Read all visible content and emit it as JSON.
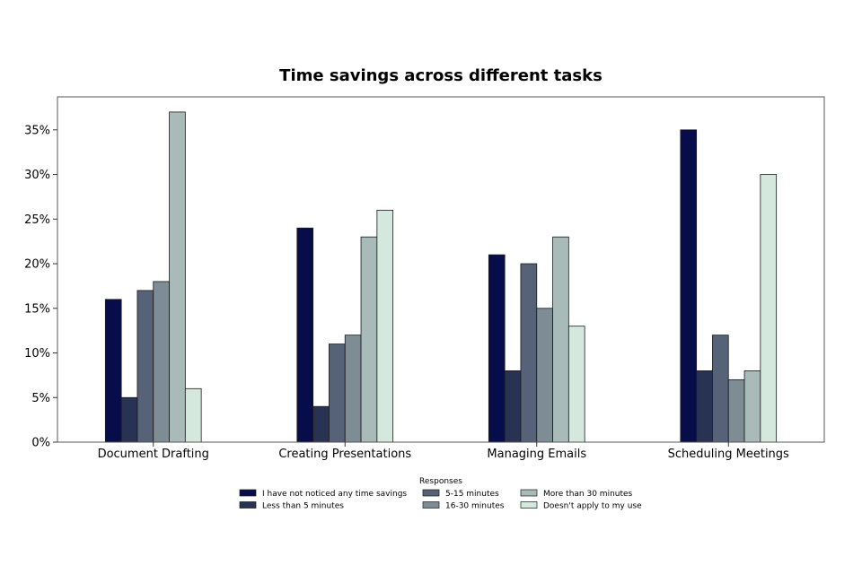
{
  "chart_data": {
    "type": "bar",
    "title": "Time savings across different tasks",
    "xlabel": "",
    "ylabel": "",
    "ylim": [
      0,
      0.387
    ],
    "yticks": [
      0,
      0.05,
      0.1,
      0.15,
      0.2,
      0.25,
      0.3,
      0.35
    ],
    "ytick_labels": [
      "0%",
      "5%",
      "10%",
      "15%",
      "20%",
      "25%",
      "30%",
      "35%"
    ],
    "grid": false,
    "categories": [
      "Document Drafting",
      "Creating Presentations",
      "Managing Emails",
      "Scheduling Meetings"
    ],
    "series": [
      {
        "name": "I have not noticed any time savings",
        "color": "#070d4a",
        "values": [
          0.16,
          0.24,
          0.21,
          0.35
        ]
      },
      {
        "name": "Less than 5 minutes",
        "color": "#283353",
        "values": [
          0.05,
          0.04,
          0.08,
          0.08
        ]
      },
      {
        "name": "5-15 minutes",
        "color": "#556277",
        "values": [
          0.17,
          0.11,
          0.2,
          0.12
        ]
      },
      {
        "name": "16-30 minutes",
        "color": "#7e8d95",
        "values": [
          0.18,
          0.12,
          0.15,
          0.07
        ]
      },
      {
        "name": "More than 30 minutes",
        "color": "#a9bbb9",
        "values": [
          0.37,
          0.23,
          0.23,
          0.08
        ]
      },
      {
        "name": "Doesn't apply to my use",
        "color": "#d5e8de",
        "values": [
          0.06,
          0.26,
          0.13,
          0.3
        ]
      }
    ],
    "legend": {
      "title": "Responses",
      "placement": "bottom-center",
      "columns": 3
    }
  }
}
